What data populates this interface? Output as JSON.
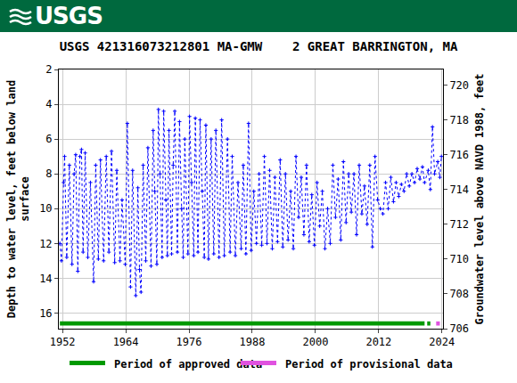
{
  "header": {
    "logo": "USGS"
  },
  "chart_data": {
    "type": "line",
    "title": "USGS 421316073212801 MA-GMW    2 GREAT BARRINGTON, MA",
    "ylabel": "Depth to water level, feet below land surface",
    "y2label": "Groundwater level above NAVD 1988, feet",
    "color": "#0000ff",
    "marker": "cross",
    "line_style": "dotted",
    "grid": true,
    "xlim": [
      1951.3,
      2024.2
    ],
    "xticks": [
      1952,
      1964,
      1976,
      1988,
      2000,
      2012,
      2024
    ],
    "ylim": [
      16.9,
      2
    ],
    "yticks": [
      2,
      4,
      6,
      8,
      10,
      12,
      14,
      16
    ],
    "y2lim": [
      706.0,
      720.9
    ],
    "y2ticks": [
      706,
      708,
      710,
      712,
      714,
      716,
      718,
      720
    ],
    "x": [
      1951.5,
      1951.8,
      1952.2,
      1952.4,
      1952.8,
      1953.3,
      1953.8,
      1954.2,
      1954.5,
      1954.9,
      1955.3,
      1955.6,
      1955.9,
      1956.3,
      1956.8,
      1957.3,
      1957.9,
      1958.3,
      1958.8,
      1959.2,
      1959.8,
      1960.3,
      1960.8,
      1961.3,
      1961.9,
      1962.3,
      1962.9,
      1963.3,
      1963.9,
      1964.3,
      1964.9,
      1965.3,
      1965.9,
      1966.3,
      1966.6,
      1966.9,
      1967.3,
      1967.8,
      1968.2,
      1968.8,
      1969.2,
      1969.5,
      1969.9,
      1970.2,
      1970.5,
      1970.9,
      1971.2,
      1971.6,
      1971.9,
      1972.2,
      1972.7,
      1973.0,
      1973.3,
      1973.8,
      1974.2,
      1974.6,
      1974.9,
      1975.2,
      1975.8,
      1976.1,
      1976.5,
      1976.9,
      1977.2,
      1977.7,
      1978.1,
      1978.5,
      1978.9,
      1979.2,
      1979.7,
      1980.2,
      1980.7,
      1981.1,
      1981.7,
      1982.2,
      1982.7,
      1983.3,
      1983.8,
      1984.2,
      1984.8,
      1985.3,
      1985.9,
      1986.3,
      1986.8,
      1987.3,
      1987.8,
      1988.3,
      1988.8,
      1989.3,
      1989.8,
      1990.3,
      1990.8,
      1991.3,
      1991.8,
      1992.3,
      1992.8,
      1993.3,
      1993.8,
      1994.3,
      1994.8,
      1995.3,
      1995.8,
      1996.3,
      1996.8,
      1997.3,
      1997.8,
      1998.3,
      1998.8,
      1999.3,
      1999.8,
      2000.3,
      2000.8,
      2001.3,
      2001.8,
      2002.3,
      2002.8,
      2003.3,
      2003.8,
      2004.3,
      2004.8,
      2005.3,
      2005.8,
      2006.3,
      2006.8,
      2007.3,
      2007.8,
      2008.3,
      2008.8,
      2009.3,
      2009.8,
      2010.3,
      2010.8,
      2011.3,
      2011.8,
      2012.3,
      2012.8,
      2013.3,
      2013.8,
      2014.3,
      2014.8,
      2015.3,
      2015.8,
      2016.3,
      2016.8,
      2017.3,
      2017.8,
      2018.3,
      2018.8,
      2019.3,
      2019.8,
      2020.3,
      2020.7,
      2021.4,
      2021.8,
      2022.2,
      2022.6,
      2023.2,
      2023.6,
      2023.9
    ],
    "values": [
      12.0,
      13.0,
      8.5,
      7.0,
      12.8,
      7.5,
      13.2,
      8.0,
      6.9,
      13.6,
      7.0,
      6.6,
      12.5,
      6.8,
      12.8,
      8.5,
      14.2,
      7.5,
      12.9,
      7.2,
      13.0,
      7.0,
      12.5,
      6.7,
      13.1,
      7.8,
      13.0,
      9.5,
      13.2,
      5.1,
      14.5,
      7.8,
      15.0,
      8.8,
      13.5,
      14.8,
      7.5,
      13.0,
      6.5,
      13.3,
      5.5,
      9.0,
      13.2,
      4.3,
      8.0,
      12.8,
      4.4,
      9.5,
      12.7,
      5.5,
      12.6,
      7.5,
      4.4,
      12.5,
      5.0,
      10.0,
      12.8,
      6.0,
      12.6,
      4.7,
      8.5,
      12.7,
      4.8,
      12.5,
      4.9,
      9.0,
      12.8,
      5.2,
      12.9,
      6.0,
      12.6,
      5.5,
      12.8,
      4.9,
      12.7,
      6.0,
      12.5,
      7.0,
      12.7,
      8.5,
      12.3,
      7.5,
      12.6,
      5.1,
      12.4,
      9.0,
      12.0,
      8.0,
      12.1,
      7.0,
      12.0,
      7.8,
      12.3,
      8.2,
      11.9,
      7.2,
      12.2,
      8.0,
      11.8,
      9.0,
      12.3,
      7.0,
      10.5,
      8.2,
      11.5,
      7.5,
      11.9,
      9.2,
      12.1,
      8.5,
      11.0,
      9.0,
      12.3,
      10.0,
      12.0,
      7.5,
      10.5,
      8.3,
      11.8,
      7.3,
      10.8,
      8.0,
      10.2,
      8.0,
      11.5,
      7.5,
      10.3,
      8.7,
      10.9,
      7.5,
      12.2,
      7.0,
      9.5,
      10.0,
      10.3,
      8.5,
      10.0,
      8.2,
      9.6,
      8.5,
      9.3,
      8.6,
      9.0,
      8.0,
      8.7,
      8.0,
      8.5,
      7.7,
      8.3,
      7.6,
      8.5,
      7.8,
      8.9,
      5.3,
      8.0,
      7.3,
      8.2,
      7.0
    ],
    "periods": [
      {
        "name": "Period of approved data",
        "color": "#009900",
        "ranges": [
          [
            1951.5,
            2020.7
          ],
          [
            2021.2,
            2021.8
          ]
        ]
      },
      {
        "name": "Period of provisional data",
        "color": "#e052e0",
        "ranges": [
          [
            2022.9,
            2023.6
          ]
        ]
      }
    ]
  }
}
